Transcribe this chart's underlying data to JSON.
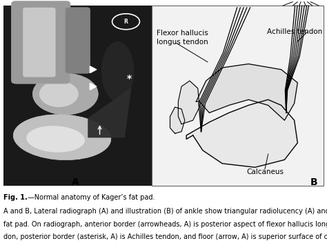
{
  "title": "",
  "background_color": "#ffffff",
  "border_color": "#000000",
  "label_A": "A",
  "label_B": "B",
  "fig_title": "Fig. 1.",
  "fig_title_dash": "—Normal anatomy of Kager’s fat pad.",
  "caption_line1": "A and B, Lateral radiograph (A) and illustration (B) of ankle show triangular radiolucency (A) and structure of Kager’s",
  "caption_line2": "fat pad. On radiograph, anterior border (arrowheads, A) is posterior aspect of flexor hallucis longus muscle and ten-",
  "caption_line3": "don, posterior border (asterisk, A) is Achilles tendon, and floor (arrow, A) is superior surface of calcaneus.",
  "annotation_flexor": "Flexor hallucis\nlongus tendon",
  "annotation_achilles": "Achilles tendon",
  "annotation_calcaneus": "Calcaneus",
  "font_size_caption": 7.0,
  "font_size_label": 10,
  "font_size_annotation": 7.5
}
